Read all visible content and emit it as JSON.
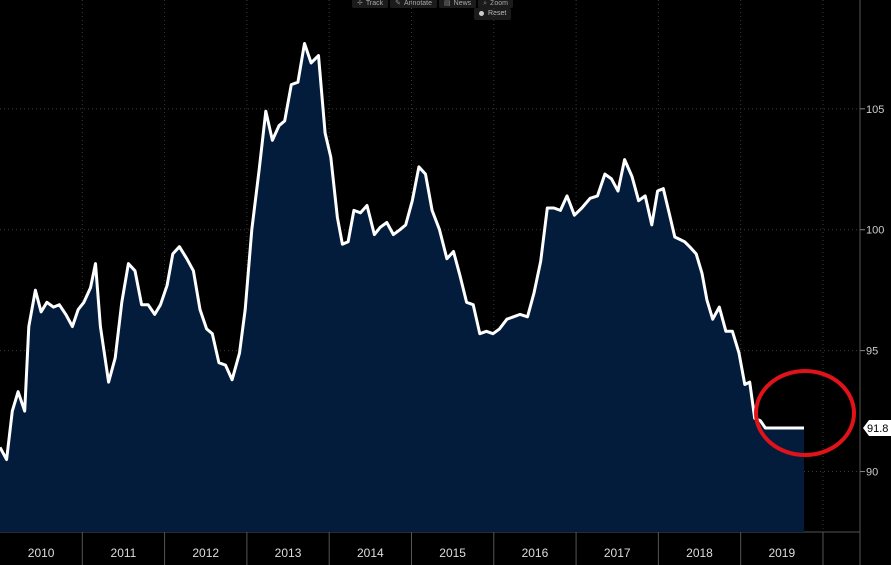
{
  "toolbar": {
    "track": "Track",
    "annotate": "Annotate",
    "news": "News",
    "zoom": "Zoom",
    "reset": "Reset"
  },
  "colors": {
    "background": "#000000",
    "area_fill": "#041c3c",
    "line": "#ffffff",
    "highlight_circle": "#e0121a",
    "grid": "#3a3a3a"
  },
  "chart_data": {
    "type": "area",
    "title": "",
    "xlabel": "",
    "ylabel": "",
    "ylim": [
      87.5,
      109.5
    ],
    "xlim": [
      2009.5,
      2019.95
    ],
    "y_ticks": [
      90,
      95,
      100,
      105
    ],
    "x_tick_labels": [
      "2010",
      "2011",
      "2012",
      "2013",
      "2014",
      "2015",
      "2016",
      "2017",
      "2018",
      "2019"
    ],
    "grid": true,
    "last_value_label": "91.8",
    "annotations": [
      "red circle highlighting the latest readings (2019)"
    ],
    "series": [
      {
        "x": [
          2009.5,
          2009.58,
          2009.65,
          2009.72,
          2009.8,
          2009.85,
          2009.93,
          2010.0,
          2010.07,
          2010.15,
          2010.22,
          2010.3,
          2010.38,
          2010.45,
          2010.52,
          2010.6,
          2010.66,
          2010.72,
          2010.82,
          2010.9,
          2010.98,
          2011.06,
          2011.14,
          2011.22,
          2011.3,
          2011.38,
          2011.45,
          2011.53,
          2011.6,
          2011.68,
          2011.77,
          2011.85,
          2011.93,
          2012.01,
          2012.08,
          2012.16,
          2012.24,
          2012.32,
          2012.41,
          2012.48,
          2012.56,
          2012.65,
          2012.73,
          2012.81,
          2012.89,
          2012.96,
          2013.04,
          2013.12,
          2013.2,
          2013.28,
          2013.37,
          2013.45,
          2013.52,
          2013.6,
          2013.66,
          2013.73,
          2013.8,
          2013.88,
          2013.96,
          2014.05,
          2014.12,
          2014.2,
          2014.28,
          2014.36,
          2014.43,
          2014.51,
          2014.59,
          2014.67,
          2014.75,
          2014.84,
          2014.93,
          2015.01,
          2015.09,
          2015.17,
          2015.25,
          2015.33,
          2015.41,
          2015.49,
          2015.57,
          2015.66,
          2015.74,
          2015.82,
          2015.91,
          2015.99,
          2016.07,
          2016.15,
          2016.23,
          2016.31,
          2016.39,
          2016.48,
          2016.57,
          2016.67,
          2016.76,
          2016.85,
          2016.93,
          2017.01,
          2017.09,
          2017.18,
          2017.26,
          2017.34,
          2017.42,
          2017.49,
          2017.56,
          2017.63,
          2017.7,
          2017.76,
          2017.82,
          2017.88,
          2017.96,
          2018.03,
          2018.09,
          2018.16,
          2018.24,
          2018.32,
          2018.4,
          2018.48,
          2018.55,
          2018.61,
          2018.67,
          2018.74,
          2018.8,
          2018.87,
          2018.94,
          2019.0,
          2019.09,
          2019.17,
          2019.27
        ],
        "values": [
          91.0,
          90.5,
          92.5,
          93.3,
          92.5,
          96.0,
          97.5,
          96.6,
          97.0,
          96.8,
          96.9,
          96.5,
          96.0,
          96.7,
          97.0,
          97.6,
          98.6,
          96.0,
          93.7,
          94.7,
          97.0,
          98.6,
          98.3,
          96.9,
          96.9,
          96.5,
          96.9,
          97.7,
          99.0,
          99.3,
          98.8,
          98.3,
          96.7,
          95.9,
          95.7,
          94.5,
          94.4,
          93.8,
          94.9,
          96.7,
          100.0,
          102.5,
          104.9,
          103.7,
          104.3,
          104.5,
          106.0,
          106.1,
          107.7,
          106.9,
          107.2,
          104.0,
          103.0,
          100.5,
          99.4,
          99.5,
          100.8,
          100.7,
          101.0,
          99.8,
          100.1,
          100.3,
          99.8,
          100.0,
          100.2,
          101.2,
          102.6,
          102.3,
          100.8,
          100.0,
          98.8,
          99.1,
          98.1,
          97.0,
          96.9,
          95.7,
          95.8,
          95.7,
          95.9,
          96.3,
          96.4,
          96.5,
          96.4,
          97.4,
          98.7,
          100.9,
          100.9,
          100.8,
          101.4,
          100.6,
          100.9,
          101.3,
          101.4,
          102.3,
          102.1,
          101.6,
          102.9,
          102.2,
          101.2,
          101.4,
          100.2,
          101.6,
          101.7,
          100.7,
          99.7,
          99.6,
          99.5,
          99.3,
          99.0,
          98.2,
          97.1,
          96.3,
          96.8,
          95.8,
          95.8,
          94.9,
          93.6,
          93.7,
          92.2,
          92.1,
          91.8,
          91.8,
          91.8,
          91.8,
          91.8,
          91.8,
          91.8
        ]
      }
    ]
  }
}
